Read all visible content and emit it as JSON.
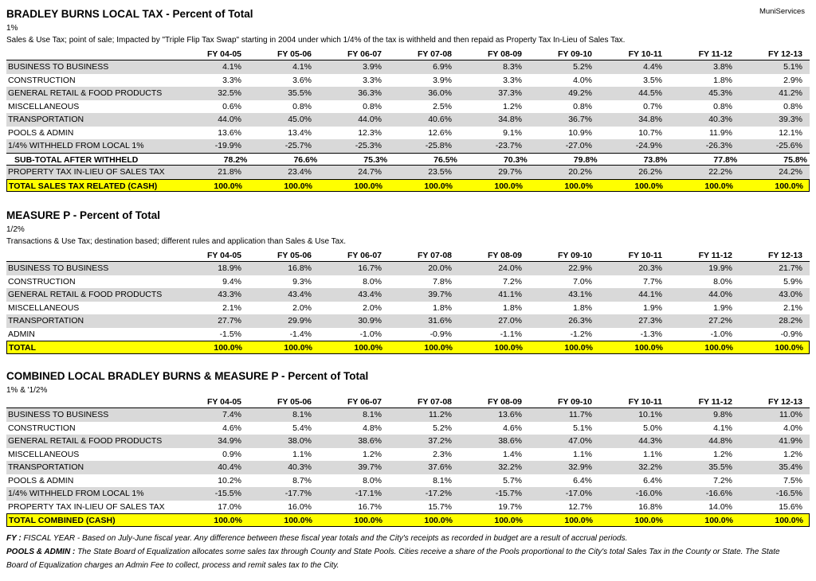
{
  "brand": "MuniServices",
  "sections": [
    {
      "title": "BRADLEY BURNS LOCAL TAX - Percent of Total",
      "rate": "1%",
      "description": "Sales & Use Tax; point of sale; Impacted by \"Triple Flip Tax Swap\" starting in 2004 under which 1/4% of the tax is withheld and then repaid as Property Tax In-Lieu of Sales Tax.",
      "columns": [
        "FY 04-05",
        "FY 05-06",
        "FY 06-07",
        "FY 07-08",
        "FY 08-09",
        "FY 09-10",
        "FY 10-11",
        "FY 11-12",
        "FY 12-13"
      ],
      "rows": [
        {
          "label": "BUSINESS TO BUSINESS",
          "cells": [
            "4.1%",
            "4.1%",
            "3.9%",
            "6.9%",
            "8.3%",
            "5.2%",
            "4.4%",
            "3.8%",
            "5.1%"
          ]
        },
        {
          "label": "CONSTRUCTION",
          "cells": [
            "3.3%",
            "3.6%",
            "3.3%",
            "3.9%",
            "3.3%",
            "4.0%",
            "3.5%",
            "1.8%",
            "2.9%"
          ]
        },
        {
          "label": "GENERAL RETAIL & FOOD PRODUCTS",
          "cells": [
            "32.5%",
            "35.5%",
            "36.3%",
            "36.0%",
            "37.3%",
            "49.2%",
            "44.5%",
            "45.3%",
            "41.2%"
          ]
        },
        {
          "label": "MISCELLANEOUS",
          "cells": [
            "0.6%",
            "0.8%",
            "0.8%",
            "2.5%",
            "1.2%",
            "0.8%",
            "0.7%",
            "0.8%",
            "0.8%"
          ]
        },
        {
          "label": "TRANSPORTATION",
          "cells": [
            "44.0%",
            "45.0%",
            "44.0%",
            "40.6%",
            "34.8%",
            "36.7%",
            "34.8%",
            "40.3%",
            "39.3%"
          ]
        },
        {
          "label": "POOLS & ADMIN",
          "cells": [
            "13.6%",
            "13.4%",
            "12.3%",
            "12.6%",
            "9.1%",
            "10.9%",
            "10.7%",
            "11.9%",
            "12.1%"
          ]
        },
        {
          "label": "1/4% WITHHELD FROM LOCAL 1%",
          "cells": [
            "-19.9%",
            "-25.7%",
            "-25.3%",
            "-25.8%",
            "-23.7%",
            "-27.0%",
            "-24.9%",
            "-26.3%",
            "-25.6%"
          ]
        },
        {
          "label": "SUB-TOTAL AFTER WITHHELD",
          "cells": [
            "78.2%",
            "76.6%",
            "75.3%",
            "76.5%",
            "70.3%",
            "79.8%",
            "73.8%",
            "77.8%",
            "75.8%"
          ]
        },
        {
          "label": "PROPERTY TAX IN-LIEU OF SALES TAX",
          "cells": [
            "21.8%",
            "23.4%",
            "24.7%",
            "23.5%",
            "29.7%",
            "20.2%",
            "26.2%",
            "22.2%",
            "24.2%"
          ]
        },
        {
          "label": "TOTAL SALES TAX RELATED (CASH)",
          "cells": [
            "100.0%",
            "100.0%",
            "100.0%",
            "100.0%",
            "100.0%",
            "100.0%",
            "100.0%",
            "100.0%",
            "100.0%"
          ]
        }
      ]
    },
    {
      "title": "MEASURE P - Percent of Total",
      "rate": "1/2%",
      "description": "Transactions & Use Tax; destination based; different rules and application than Sales & Use Tax.",
      "columns": [
        "FY 04-05",
        "FY 05-06",
        "FY 06-07",
        "FY 07-08",
        "FY 08-09",
        "FY 09-10",
        "FY 10-11",
        "FY 11-12",
        "FY 12-13"
      ],
      "rows": [
        {
          "label": "BUSINESS TO BUSINESS",
          "cells": [
            "18.9%",
            "16.8%",
            "16.7%",
            "20.0%",
            "24.0%",
            "22.9%",
            "20.3%",
            "19.9%",
            "21.7%"
          ]
        },
        {
          "label": "CONSTRUCTION",
          "cells": [
            "9.4%",
            "9.3%",
            "8.0%",
            "7.8%",
            "7.2%",
            "7.0%",
            "7.7%",
            "8.0%",
            "5.9%"
          ]
        },
        {
          "label": "GENERAL RETAIL & FOOD PRODUCTS",
          "cells": [
            "43.3%",
            "43.4%",
            "43.4%",
            "39.7%",
            "41.1%",
            "43.1%",
            "44.1%",
            "44.0%",
            "43.0%"
          ]
        },
        {
          "label": "MISCELLANEOUS",
          "cells": [
            "2.1%",
            "2.0%",
            "2.0%",
            "1.8%",
            "1.8%",
            "1.8%",
            "1.9%",
            "1.9%",
            "2.1%"
          ]
        },
        {
          "label": "TRANSPORTATION",
          "cells": [
            "27.7%",
            "29.9%",
            "30.9%",
            "31.6%",
            "27.0%",
            "26.3%",
            "27.3%",
            "27.2%",
            "28.2%"
          ]
        },
        {
          "label": "ADMIN",
          "cells": [
            "-1.5%",
            "-1.4%",
            "-1.0%",
            "-0.9%",
            "-1.1%",
            "-1.2%",
            "-1.3%",
            "-1.0%",
            "-0.9%"
          ]
        },
        {
          "label": "TOTAL",
          "cells": [
            "100.0%",
            "100.0%",
            "100.0%",
            "100.0%",
            "100.0%",
            "100.0%",
            "100.0%",
            "100.0%",
            "100.0%"
          ]
        }
      ]
    },
    {
      "title": "COMBINED LOCAL BRADLEY BURNS & MEASURE P - Percent of Total",
      "rate": "1% & '1/2%",
      "columns": [
        "FY 04-05",
        "FY 05-06",
        "FY 06-07",
        "FY 07-08",
        "FY 08-09",
        "FY 09-10",
        "FY 10-11",
        "FY 11-12",
        "FY 12-13"
      ],
      "rows": [
        {
          "label": "BUSINESS TO BUSINESS",
          "cells": [
            "7.4%",
            "8.1%",
            "8.1%",
            "11.2%",
            "13.6%",
            "11.7%",
            "10.1%",
            "9.8%",
            "11.0%"
          ]
        },
        {
          "label": "CONSTRUCTION",
          "cells": [
            "4.6%",
            "5.4%",
            "4.8%",
            "5.2%",
            "4.6%",
            "5.1%",
            "5.0%",
            "4.1%",
            "4.0%"
          ]
        },
        {
          "label": "GENERAL RETAIL & FOOD PRODUCTS",
          "cells": [
            "34.9%",
            "38.0%",
            "38.6%",
            "37.2%",
            "38.6%",
            "47.0%",
            "44.3%",
            "44.8%",
            "41.9%"
          ]
        },
        {
          "label": "MISCELLANEOUS",
          "cells": [
            "0.9%",
            "1.1%",
            "1.2%",
            "2.3%",
            "1.4%",
            "1.1%",
            "1.1%",
            "1.2%",
            "1.2%"
          ]
        },
        {
          "label": "TRANSPORTATION",
          "cells": [
            "40.4%",
            "40.3%",
            "39.7%",
            "37.6%",
            "32.2%",
            "32.9%",
            "32.2%",
            "35.5%",
            "35.4%"
          ]
        },
        {
          "label": "POOLS & ADMIN",
          "cells": [
            "10.2%",
            "8.7%",
            "8.0%",
            "8.1%",
            "5.7%",
            "6.4%",
            "6.4%",
            "7.2%",
            "7.5%"
          ]
        },
        {
          "label": "1/4% WITHHELD FROM LOCAL 1%",
          "cells": [
            "-15.5%",
            "-17.7%",
            "-17.1%",
            "-17.2%",
            "-15.7%",
            "-17.0%",
            "-16.0%",
            "-16.6%",
            "-16.5%"
          ]
        },
        {
          "label": "PROPERTY TAX IN-LIEU OF SALES TAX",
          "cells": [
            "17.0%",
            "16.0%",
            "16.7%",
            "15.7%",
            "19.7%",
            "12.7%",
            "16.8%",
            "14.0%",
            "15.6%"
          ]
        },
        {
          "label": "TOTAL COMBINED (CASH)",
          "cells": [
            "100.0%",
            "100.0%",
            "100.0%",
            "100.0%",
            "100.0%",
            "100.0%",
            "100.0%",
            "100.0%",
            "100.0%"
          ]
        }
      ]
    }
  ],
  "footnotes": [
    {
      "term": "FY :",
      "text": " FISCAL YEAR -  Based on July-June fiscal year. Any difference between these fiscal year totals and the City's receipts as recorded in budget are a result of accrual periods."
    },
    {
      "term": "POOLS & ADMIN :",
      "text": " The State Board of Equalization allocates some sales tax through County and State Pools.  Cities receive a share of the Pools proportional to the City's total Sales Tax in the County or State.  The State Board of Equalization charges an Admin Fee to collect, process and remit sales tax to the City."
    }
  ]
}
